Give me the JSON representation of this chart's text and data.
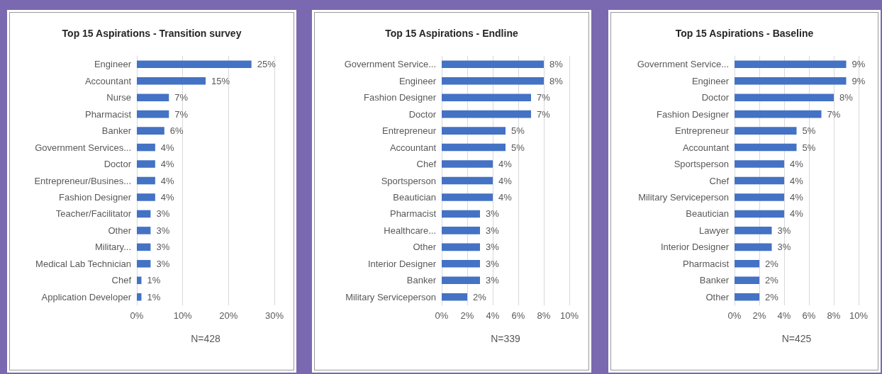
{
  "chart_data": [
    {
      "type": "bar",
      "orientation": "horizontal",
      "title": "Top 15 Aspirations - Transition survey",
      "xlabel": "N=428",
      "categories": [
        "Engineer",
        "Accountant",
        "Nurse",
        "Pharmacist",
        "Banker",
        "Government Services...",
        "Doctor",
        "Entrepreneur/Busines...",
        "Fashion Designer",
        "Teacher/Facilitator",
        "Other",
        "Military...",
        "Medical Lab Technician",
        "Chef",
        "Application Developer"
      ],
      "values": [
        25,
        15,
        7,
        7,
        6,
        4,
        4,
        4,
        4,
        3,
        3,
        3,
        3,
        1,
        1
      ],
      "value_labels": [
        "25%",
        "15%",
        "7%",
        "7%",
        "6%",
        "4%",
        "4%",
        "4%",
        "4%",
        "3%",
        "3%",
        "3%",
        "3%",
        "1%",
        "1%"
      ],
      "color": "#4472c4",
      "xlim": [
        0,
        30
      ],
      "xticks": [
        {
          "value": 0,
          "label": "0%"
        },
        {
          "value": 10,
          "label": "10%"
        },
        {
          "value": 20,
          "label": "20%"
        },
        {
          "value": 30,
          "label": "30%"
        }
      ],
      "grid": "x"
    },
    {
      "type": "bar",
      "orientation": "horizontal",
      "title": "Top 15 Aspirations - Endline",
      "xlabel": "N=339",
      "categories": [
        "Government Service...",
        "Engineer",
        "Fashion Designer",
        "Doctor",
        "Entrepreneur",
        "Accountant",
        "Chef",
        "Sportsperson",
        "Beautician",
        "Pharmacist",
        "Healthcare...",
        "Other",
        "Interior Designer",
        "Banker",
        "Military Serviceperson"
      ],
      "values": [
        8,
        8,
        7,
        7,
        5,
        5,
        4,
        4,
        4,
        3,
        3,
        3,
        3,
        3,
        2
      ],
      "value_labels": [
        "8%",
        "8%",
        "7%",
        "7%",
        "5%",
        "5%",
        "4%",
        "4%",
        "4%",
        "3%",
        "3%",
        "3%",
        "3%",
        "3%",
        "2%"
      ],
      "color": "#4472c4",
      "xlim": [
        0,
        10
      ],
      "xticks": [
        {
          "value": 0,
          "label": "0%"
        },
        {
          "value": 2,
          "label": "2%"
        },
        {
          "value": 4,
          "label": "4%"
        },
        {
          "value": 6,
          "label": "6%"
        },
        {
          "value": 8,
          "label": "8%"
        },
        {
          "value": 10,
          "label": "10%"
        }
      ],
      "grid": "x"
    },
    {
      "type": "bar",
      "orientation": "horizontal",
      "title": "Top 15 Aspirations - Baseline",
      "xlabel": "N=425",
      "categories": [
        "Government Service...",
        "Engineer",
        "Doctor",
        "Fashion Designer",
        "Entrepreneur",
        "Accountant",
        "Sportsperson",
        "Chef",
        "Military Serviceperson",
        "Beautician",
        "Lawyer",
        "Interior Designer",
        "Pharmacist",
        "Banker",
        "Other"
      ],
      "values": [
        9,
        9,
        8,
        7,
        5,
        5,
        4,
        4,
        4,
        4,
        3,
        3,
        2,
        2,
        2
      ],
      "value_labels": [
        "9%",
        "9%",
        "8%",
        "7%",
        "5%",
        "5%",
        "4%",
        "4%",
        "4%",
        "4%",
        "3%",
        "3%",
        "2%",
        "2%",
        "2%"
      ],
      "color": "#4472c4",
      "xlim": [
        0,
        10
      ],
      "xticks": [
        {
          "value": 0,
          "label": "0%"
        },
        {
          "value": 2,
          "label": "2%"
        },
        {
          "value": 4,
          "label": "4%"
        },
        {
          "value": 6,
          "label": "6%"
        },
        {
          "value": 8,
          "label": "8%"
        },
        {
          "value": 10,
          "label": "10%"
        }
      ],
      "grid": "x"
    }
  ]
}
